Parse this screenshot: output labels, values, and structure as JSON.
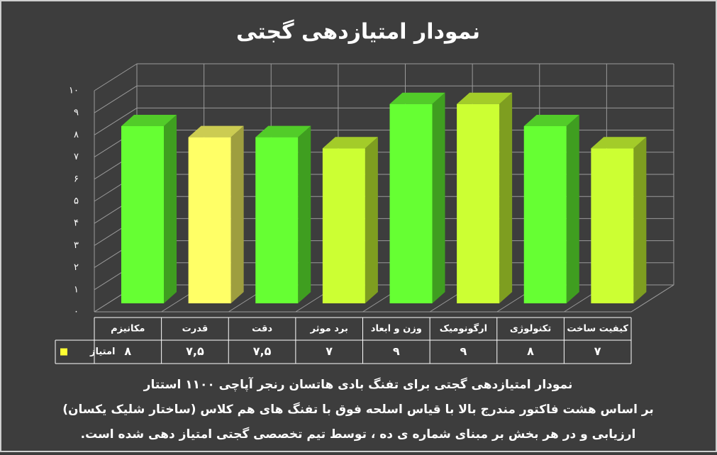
{
  "chart_data": {
    "type": "bar3d",
    "title": "نمودار امتیازدهی گجتی",
    "categories": [
      "مکانیزم",
      "قدرت",
      "دقت",
      "برد موثر",
      "وزن و ابعاد",
      "ارگونومیک",
      "تکنولوژی",
      "کیفیت ساخت"
    ],
    "series": [
      {
        "name": "امتیاز",
        "color": "#ffff33",
        "colors": [
          "#66ff33",
          "#ffff66",
          "#66ff33",
          "#ccff33",
          "#66ff33",
          "#ccff33",
          "#66ff33",
          "#ccff33"
        ],
        "values": [
          8,
          7.5,
          7.5,
          7,
          9,
          9,
          8,
          7
        ],
        "value_labels": [
          "۸",
          "۷,۵",
          "۷,۵",
          "۷",
          "۹",
          "۹",
          "۸",
          "۷"
        ]
      }
    ],
    "ylim": [
      0,
      10
    ],
    "yticks": [
      {
        "value": 0,
        "label": "۰"
      },
      {
        "value": 1,
        "label": "۱"
      },
      {
        "value": 2,
        "label": "۲"
      },
      {
        "value": 3,
        "label": "۳"
      },
      {
        "value": 4,
        "label": "۴"
      },
      {
        "value": 5,
        "label": "۵"
      },
      {
        "value": 6,
        "label": "۶"
      },
      {
        "value": 7,
        "label": "۷"
      },
      {
        "value": 8,
        "label": "۸"
      },
      {
        "value": 9,
        "label": "۹"
      },
      {
        "value": 10,
        "label": "۱۰"
      }
    ],
    "grid": true,
    "annotations": [
      "نمودار امتیازدهی گجتی برای تفنگ بادی هاتسان رنجر آپاچی ۱۱۰۰ استتار",
      "بر اساس هشت فاکتور مندرج بالا با قیاس اسلحه فوق با تفنگ های هم کلاس (ساختار شلیک یکسان)",
      "ارزیابی و در هر بخش بر مبنای شماره ی ده ، توسط تیم تخصصی گجتی امتیاز دهی شده است."
    ]
  }
}
